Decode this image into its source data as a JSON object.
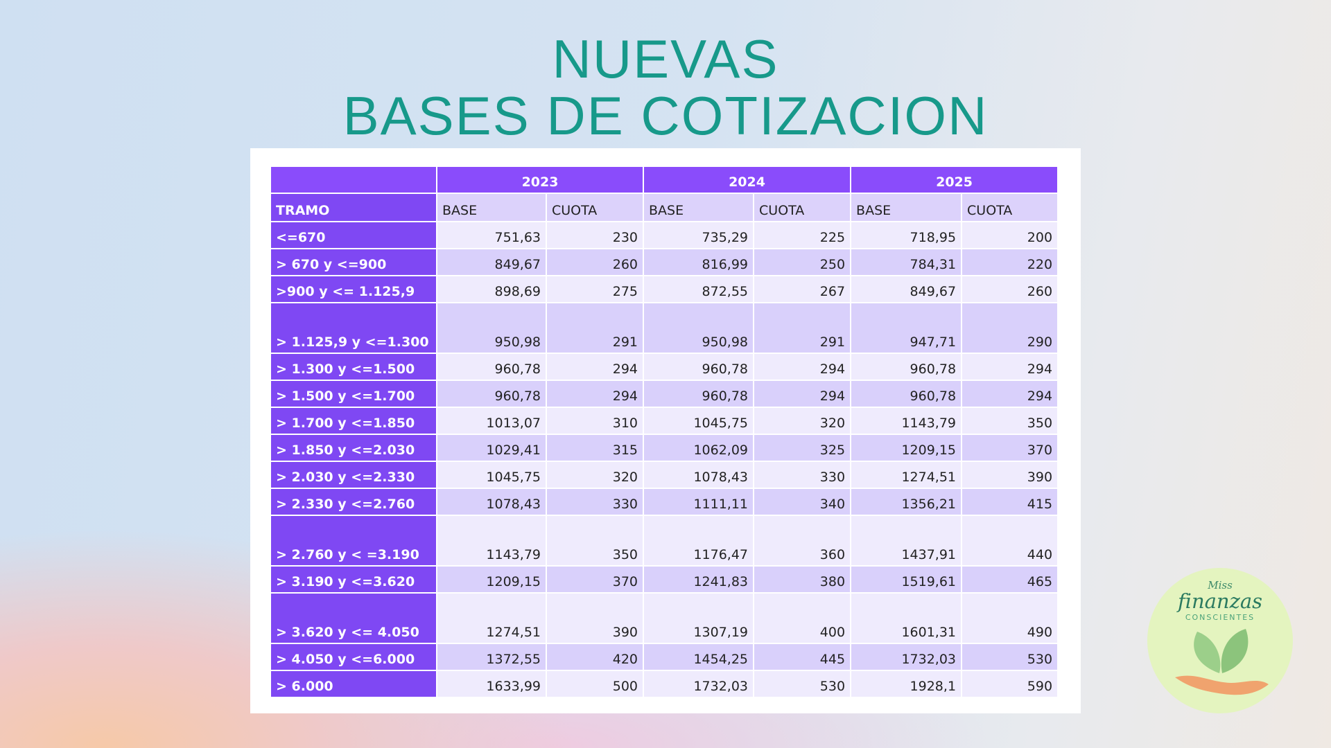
{
  "title": {
    "line1": "NUEVAS",
    "line2": "BASES DE COTIZACION"
  },
  "table": {
    "years": [
      "2023",
      "2024",
      "2025"
    ],
    "columns": [
      "TRAMO",
      "BASE",
      "CUOTA",
      "BASE",
      "CUOTA",
      "BASE",
      "CUOTA"
    ],
    "rows": [
      [
        "<=670",
        "751,63",
        "230",
        "735,29",
        "225",
        "718,95",
        "200"
      ],
      [
        "> 670 y <=900",
        "849,67",
        "260",
        "816,99",
        "250",
        "784,31",
        "220"
      ],
      [
        ">900 y <= 1.125,9",
        "898,69",
        "275",
        "872,55",
        "267",
        "849,67",
        "260"
      ],
      [
        "> 1.125,9 y <=1.300",
        "950,98",
        "291",
        "950,98",
        "291",
        "947,71",
        "290"
      ],
      [
        "> 1.300 y <=1.500",
        "960,78",
        "294",
        "960,78",
        "294",
        "960,78",
        "294"
      ],
      [
        "> 1.500 y <=1.700",
        "960,78",
        "294",
        "960,78",
        "294",
        "960,78",
        "294"
      ],
      [
        "> 1.700 y <=1.850",
        "1013,07",
        "310",
        "1045,75",
        "320",
        "1143,79",
        "350"
      ],
      [
        "> 1.850 y <=2.030",
        "1029,41",
        "315",
        "1062,09",
        "325",
        "1209,15",
        "370"
      ],
      [
        "> 2.030 y <=2.330",
        "1045,75",
        "320",
        "1078,43",
        "330",
        "1274,51",
        "390"
      ],
      [
        "> 2.330 y <=2.760",
        "1078,43",
        "330",
        "1111,11",
        "340",
        "1356,21",
        "415"
      ],
      [
        "> 2.760 y < =3.190",
        "1143,79",
        "350",
        "1176,47",
        "360",
        "1437,91",
        "440"
      ],
      [
        "> 3.190 y <=3.620",
        "1209,15",
        "370",
        "1241,83",
        "380",
        "1519,61",
        "465"
      ],
      [
        "> 3.620 y <= 4.050",
        "1274,51",
        "390",
        "1307,19",
        "400",
        "1601,31",
        "490"
      ],
      [
        "> 4.050 y <=6.000",
        "1372,55",
        "420",
        "1454,25",
        "445",
        "1732,03",
        "530"
      ],
      [
        "> 6.000",
        "1633,99",
        "500",
        "1732,03",
        "530",
        "1928,1",
        "590"
      ]
    ]
  },
  "logo": {
    "top": "Miss",
    "name": "finanzas",
    "sub": "CONSCIENTES"
  }
}
